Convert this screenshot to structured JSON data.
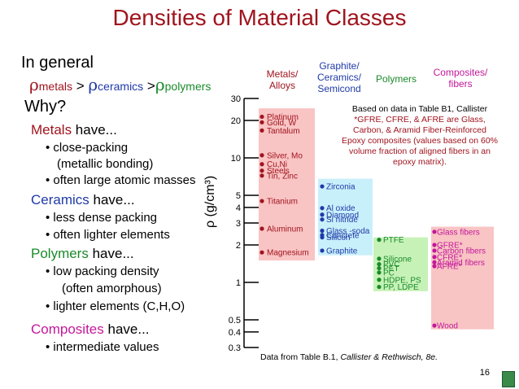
{
  "title": "Densities of Material Classes",
  "intro": {
    "general": "In general",
    "rho": "ρ",
    "metals": "metals",
    "ceramics": "ceramics",
    "polymers": "polymers",
    "gt": ">"
  },
  "why": "Why?",
  "sections": [
    {
      "head_word": "Metals",
      "head_rest": " have...",
      "color": "#a0141e",
      "bullets": [
        "• close-packing",
        "(metallic bonding)",
        "• often large atomic masses"
      ]
    },
    {
      "head_word": "Ceramics",
      "head_rest": " have...",
      "color": "#1f3aa8",
      "bullets": [
        "• less dense packing",
        "• often lighter elements"
      ]
    },
    {
      "head_word": "Polymers",
      "head_rest": " have...",
      "color": "#1a8a2a",
      "bullets": [
        "• low packing density",
        "(often amorphous)",
        "• lighter elements (C,H,O)"
      ]
    },
    {
      "head_word": "Composites",
      "head_rest": " have...",
      "color": "#c2189a",
      "bullets": [
        "• intermediate values"
      ]
    }
  ],
  "note": {
    "first": "Based on data in Table B1, Callister",
    "rest": "*GFRE, CFRE, & AFRE are Glass, Carbon, & Aramid Fiber-Reinforced Epoxy composites (values based on 60% volume fraction of aligned fibers in an epoxy matrix)."
  },
  "footnote_a": "Data from Table B.1, ",
  "footnote_b": "Callister & Rethwisch, 8e.",
  "page_number": "16",
  "colors": {
    "metals_box": "#f9c4c4",
    "ceramics_box": "#c8f0fa",
    "polymers_box": "#c6f2b8",
    "composites_box": "#f9c4c4",
    "metals": "#a0141e",
    "ceramics": "#1f3aa8",
    "polymers": "#1a8a2a",
    "composites": "#c2189a"
  },
  "chart_data": {
    "type": "scatter",
    "y_scale": "log",
    "ylabel": "ρ (g/cm³)",
    "ylim": [
      0.3,
      30
    ],
    "y_ticks": [
      0.3,
      0.4,
      0.5,
      1,
      2,
      3,
      4,
      5,
      10,
      20,
      30
    ],
    "categories": [
      "Metals/ Alloys",
      "Graphite/ Ceramics/ Semicond",
      "Polymers",
      "Composites/ fibers"
    ],
    "series": [
      {
        "name": "Metals/ Alloys",
        "points": [
          {
            "label": "Platinum",
            "value": 21.4
          },
          {
            "label": "Gold, W",
            "value": 19.3
          },
          {
            "label": "Tantalum",
            "value": 16.6
          },
          {
            "label": "Silver, Mo",
            "value": 10.5
          },
          {
            "label": "Cu,Ni",
            "value": 8.9
          },
          {
            "label": "Steels",
            "value": 7.9
          },
          {
            "label": "Tin, Zinc",
            "value": 7.2
          },
          {
            "label": "Titanium",
            "value": 4.5
          },
          {
            "label": "Aluminum",
            "value": 2.7
          },
          {
            "label": "Magnesium",
            "value": 1.74
          }
        ]
      },
      {
        "name": "Graphite/ Ceramics/ Semicond",
        "points": [
          {
            "label": "Zirconia",
            "value": 5.9
          },
          {
            "label": "Al oxide",
            "value": 3.95
          },
          {
            "label": "Diamond",
            "value": 3.5
          },
          {
            "label": "Si nitride",
            "value": 3.2
          },
          {
            "label": "Glass -soda",
            "value": 2.6
          },
          {
            "label": "Concrete",
            "value": 2.4
          },
          {
            "label": "Silicon",
            "value": 2.3
          },
          {
            "label": "Graphite",
            "value": 1.8
          }
        ]
      },
      {
        "name": "Polymers",
        "points": [
          {
            "label": "PTFE",
            "value": 2.2
          },
          {
            "label": "Silicone",
            "value": 1.55
          },
          {
            "label": "PVC",
            "value": 1.4
          },
          {
            "label": "PET",
            "value": 1.3
          },
          {
            "label": "PC",
            "value": 1.2
          },
          {
            "label": "HDPE, PS",
            "value": 1.05
          },
          {
            "label": "PP, LDPE",
            "value": 0.92
          }
        ]
      },
      {
        "name": "Composites/ fibers",
        "points": [
          {
            "label": "Glass fibers",
            "value": 2.55
          },
          {
            "label": "GFRE*",
            "value": 2.0
          },
          {
            "label": "Carbon  fibers",
            "value": 1.8
          },
          {
            "label": "CFRE*",
            "value": 1.6
          },
          {
            "label": "Aramid fibers",
            "value": 1.45
          },
          {
            "label": "AFRE*",
            "value": 1.35
          },
          {
            "label": "Wood",
            "value": 0.45
          }
        ]
      }
    ],
    "ranges": [
      {
        "series": "Metals/ Alloys",
        "min": 1.5,
        "max": 25
      },
      {
        "series": "Graphite/ Ceramics/ Semicond",
        "min": 1.65,
        "max": 6.8
      },
      {
        "series": "Polymers",
        "min": 0.85,
        "max": 2.3
      },
      {
        "series": "Composites/ fibers",
        "min": 0.42,
        "max": 2.8
      }
    ]
  }
}
